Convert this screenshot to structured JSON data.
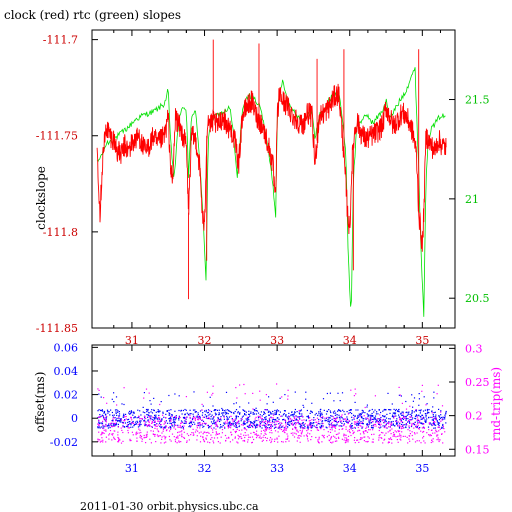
{
  "header": {
    "title": "clock (red) rtc (green) slopes",
    "footer": "2011-01-30  orbit.physics.ubc.ca"
  },
  "chart_data": [
    {
      "type": "line",
      "xlim": [
        30.45,
        35.45
      ],
      "xticks": [
        "31",
        "32",
        "33",
        "34",
        "35"
      ],
      "ylabel_left": "clockslope",
      "ylim_left": [
        -111.85,
        -111.695
      ],
      "yticks_left": [
        "-111.7",
        "-111.75",
        "-111.8",
        "-111.85"
      ],
      "ylim_right": [
        20.35,
        21.85
      ],
      "yticks_right": [
        "21.5",
        "21",
        "20.5"
      ],
      "series": [
        {
          "axis": "right",
          "color": "#00e000",
          "x": [
            30.52,
            30.58,
            30.65,
            30.75,
            30.85,
            30.95,
            31.05,
            31.15,
            31.22,
            31.3,
            31.38,
            31.45,
            31.5,
            31.53,
            31.58,
            31.65,
            31.7,
            31.75,
            31.78,
            31.82,
            31.88,
            31.93,
            31.98,
            32.02,
            32.05,
            32.1,
            32.18,
            32.28,
            32.35,
            32.4,
            32.45,
            32.52,
            32.58,
            32.62,
            32.7,
            32.78,
            32.85,
            32.92,
            32.98,
            33.0,
            33.03,
            33.08,
            33.15,
            33.22,
            33.28,
            33.35,
            33.42,
            33.48,
            33.52,
            33.58,
            33.65,
            33.72,
            33.78,
            33.85,
            33.9,
            33.95,
            33.98,
            34.02,
            34.05,
            34.1,
            34.18,
            34.25,
            34.32,
            34.4,
            34.46,
            34.5,
            34.55,
            34.62,
            34.7,
            34.78,
            34.85,
            34.9,
            34.95,
            34.98,
            35.02,
            35.05,
            35.08,
            35.12,
            35.18,
            35.25,
            35.33
          ],
          "y": [
            21.18,
            21.22,
            21.28,
            21.3,
            21.33,
            21.36,
            21.4,
            21.42,
            21.43,
            21.44,
            21.46,
            21.48,
            21.55,
            21.3,
            21.1,
            21.42,
            21.45,
            21.46,
            21.1,
            21.42,
            21.45,
            21.2,
            20.9,
            20.6,
            21.3,
            21.4,
            21.42,
            21.44,
            21.46,
            21.32,
            21.1,
            21.45,
            21.5,
            21.52,
            21.5,
            21.45,
            21.3,
            21.15,
            20.92,
            21.4,
            21.52,
            21.6,
            21.48,
            21.45,
            21.42,
            21.38,
            21.42,
            21.44,
            21.3,
            21.42,
            21.45,
            21.5,
            21.52,
            21.55,
            21.4,
            21.2,
            20.7,
            20.4,
            21.1,
            21.38,
            21.4,
            21.42,
            21.38,
            21.42,
            21.45,
            21.5,
            21.4,
            21.45,
            21.5,
            21.55,
            21.62,
            21.65,
            21.15,
            20.75,
            20.42,
            21.1,
            21.3,
            21.35,
            21.38,
            21.42,
            21.41
          ]
        },
        {
          "axis": "left",
          "color": "#ff0000",
          "x": [
            30.52,
            30.56,
            30.6,
            30.65,
            30.7,
            30.75,
            30.8,
            30.85,
            30.9,
            30.95,
            31.0,
            31.05,
            31.1,
            31.15,
            31.2,
            31.25,
            31.3,
            31.35,
            31.4,
            31.45,
            31.5,
            31.53,
            31.56,
            31.6,
            31.65,
            31.7,
            31.75,
            31.78,
            31.82,
            31.88,
            31.93,
            31.97,
            32.0,
            32.03,
            32.05,
            32.08,
            32.12,
            32.18,
            32.25,
            32.32,
            32.38,
            32.43,
            32.47,
            32.52,
            32.58,
            32.65,
            32.72,
            32.8,
            32.88,
            32.94,
            32.98,
            33.0,
            33.03,
            33.08,
            33.15,
            33.22,
            33.28,
            33.35,
            33.42,
            33.48,
            33.52,
            33.58,
            33.65,
            33.72,
            33.78,
            33.85,
            33.9,
            33.94,
            33.97,
            34.0,
            34.03,
            34.06,
            34.1,
            34.15,
            34.22,
            34.3,
            34.38,
            34.45,
            34.5,
            34.55,
            34.6,
            34.66,
            34.72,
            34.78,
            34.84,
            34.88,
            34.92,
            34.95,
            34.98,
            35.0,
            35.02,
            35.05,
            35.08,
            35.12,
            35.17,
            35.22,
            35.27,
            35.33
          ],
          "y": [
            -111.755,
            -111.79,
            -111.76,
            -111.745,
            -111.75,
            -111.752,
            -111.758,
            -111.76,
            -111.755,
            -111.758,
            -111.754,
            -111.752,
            -111.75,
            -111.756,
            -111.758,
            -111.754,
            -111.75,
            -111.755,
            -111.752,
            -111.75,
            -111.74,
            -111.765,
            -111.775,
            -111.74,
            -111.745,
            -111.75,
            -111.755,
            -111.79,
            -111.75,
            -111.752,
            -111.765,
            -111.79,
            -111.8,
            -111.75,
            -111.74,
            -111.745,
            -111.742,
            -111.745,
            -111.74,
            -111.745,
            -111.748,
            -111.755,
            -111.765,
            -111.74,
            -111.735,
            -111.732,
            -111.74,
            -111.745,
            -111.755,
            -111.765,
            -111.785,
            -111.742,
            -111.728,
            -111.732,
            -111.735,
            -111.74,
            -111.742,
            -111.745,
            -111.738,
            -111.74,
            -111.765,
            -111.74,
            -111.738,
            -111.735,
            -111.73,
            -111.728,
            -111.75,
            -111.772,
            -111.79,
            -111.8,
            -111.765,
            -111.75,
            -111.742,
            -111.748,
            -111.752,
            -111.75,
            -111.748,
            -111.745,
            -111.735,
            -111.74,
            -111.745,
            -111.742,
            -111.738,
            -111.74,
            -111.745,
            -111.75,
            -111.76,
            -111.79,
            -111.8,
            -111.808,
            -111.79,
            -111.75,
            -111.752,
            -111.755,
            -111.758,
            -111.752,
            -111.755,
            -111.756
          ]
        }
      ]
    },
    {
      "type": "scatter",
      "xlim": [
        30.45,
        35.45
      ],
      "xticks": [
        "31",
        "32",
        "33",
        "34",
        "35"
      ],
      "ylabel_left": "offset(ms)",
      "ylim_left": [
        -0.032,
        0.062
      ],
      "yticks_left": [
        "0.06",
        "0.04",
        "0.02",
        "0",
        "-0.02"
      ],
      "ylabel_right": "rnd-trip(ms)",
      "ylim_right": [
        0.14,
        0.305
      ],
      "yticks_right": [
        "0.3",
        "0.25",
        "0.2",
        "0.15"
      ],
      "series": [
        {
          "axis": "left",
          "color": "#0000ff",
          "band": [
            -0.008,
            0.008
          ]
        },
        {
          "axis": "right",
          "color": "#ff00ff",
          "band": [
            0.16,
            0.2
          ]
        }
      ]
    }
  ]
}
